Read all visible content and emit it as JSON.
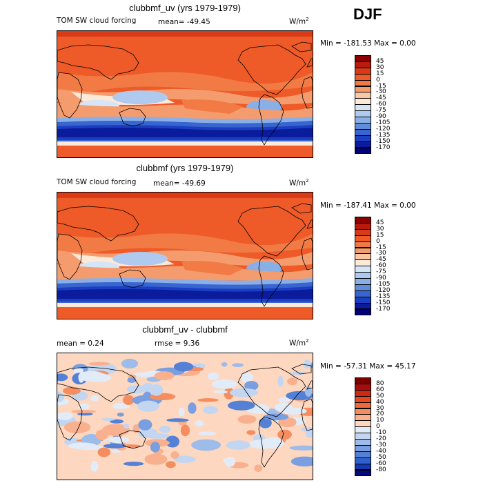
{
  "season": "DJF",
  "panels": [
    {
      "id": "top",
      "title": "clubbmf_uv (yrs 1979-1979)",
      "variable": "TOM SW cloud forcing",
      "stat_text": "mean= -49.45",
      "units": "W/m",
      "units_sup": "2",
      "minmax": "Min = -181.53 Max =    0.00",
      "colorbar": [
        "45",
        "30",
        "15",
        "0",
        "-15",
        "-30",
        "-45",
        "-60",
        "-75",
        "-90",
        "-105",
        "-120",
        "-135",
        "-150",
        "-170"
      ],
      "colors": [
        "#8b0000",
        "#b81a0e",
        "#d93a18",
        "#ee5a28",
        "#f27b45",
        "#f59c6e",
        "#fbc7a3",
        "#fde9d8",
        "#d6e4f7",
        "#b0c9ef",
        "#8aaee6",
        "#5f8ddc",
        "#3865d0",
        "#1b3fc0",
        "#0a1c9c",
        "#00007a"
      ],
      "chart_data": {
        "type": "heatmap",
        "title": "clubbmf_uv (yrs 1979-1979)",
        "field": "TOM SW cloud forcing",
        "units": "W/m2",
        "mean": -49.45,
        "min": -181.53,
        "max": 0.0,
        "levels": [
          45,
          30,
          15,
          0,
          -15,
          -30,
          -45,
          -60,
          -75,
          -90,
          -105,
          -120,
          -135,
          -150,
          -170
        ]
      }
    },
    {
      "id": "middle",
      "title": "clubbmf (yrs 1979-1979)",
      "variable": "TOM SW cloud forcing",
      "stat_text": "mean= -49.69",
      "units": "W/m",
      "units_sup": "2",
      "minmax": "Min = -187.41 Max =    0.00",
      "colorbar": [
        "45",
        "30",
        "15",
        "0",
        "-15",
        "-30",
        "-45",
        "-60",
        "-75",
        "-90",
        "-105",
        "-120",
        "-135",
        "-150",
        "-170"
      ],
      "colors": [
        "#8b0000",
        "#b81a0e",
        "#d93a18",
        "#ee5a28",
        "#f27b45",
        "#f59c6e",
        "#fbc7a3",
        "#fde9d8",
        "#d6e4f7",
        "#b0c9ef",
        "#8aaee6",
        "#5f8ddc",
        "#3865d0",
        "#1b3fc0",
        "#0a1c9c",
        "#00007a"
      ],
      "chart_data": {
        "type": "heatmap",
        "title": "clubbmf (yrs 1979-1979)",
        "field": "TOM SW cloud forcing",
        "units": "W/m2",
        "mean": -49.69,
        "min": -187.41,
        "max": 0.0,
        "levels": [
          45,
          30,
          15,
          0,
          -15,
          -30,
          -45,
          -60,
          -75,
          -90,
          -105,
          -120,
          -135,
          -150,
          -170
        ]
      }
    },
    {
      "id": "bottom",
      "title": "clubbmf_uv - clubbmf",
      "stat_text": "mean =    0.24",
      "stat2_text": "rmse =    9.36",
      "units": "W/m",
      "units_sup": "2",
      "minmax": "Min = -57.31 Max =  45.17",
      "colorbar": [
        "80",
        "60",
        "50",
        "40",
        "30",
        "20",
        "10",
        "0",
        "-10",
        "-20",
        "-30",
        "-40",
        "-50",
        "-60",
        "-80"
      ],
      "colors": [
        "#7a0000",
        "#a80d0d",
        "#cc2a14",
        "#e64a1e",
        "#f06b3a",
        "#f48e60",
        "#f8b08e",
        "#fdd7bf",
        "#e2ecf9",
        "#c2d6f2",
        "#9dbcea",
        "#7a9fe0",
        "#5480d6",
        "#3060cb",
        "#1537b0",
        "#020a80"
      ],
      "chart_data": {
        "type": "heatmap",
        "title": "clubbmf_uv - clubbmf",
        "units": "W/m2",
        "mean": 0.24,
        "rmse": 9.36,
        "min": -57.31,
        "max": 45.17,
        "levels": [
          80,
          60,
          50,
          40,
          30,
          20,
          10,
          0,
          -10,
          -20,
          -30,
          -40,
          -50,
          -60,
          -80
        ]
      }
    }
  ]
}
